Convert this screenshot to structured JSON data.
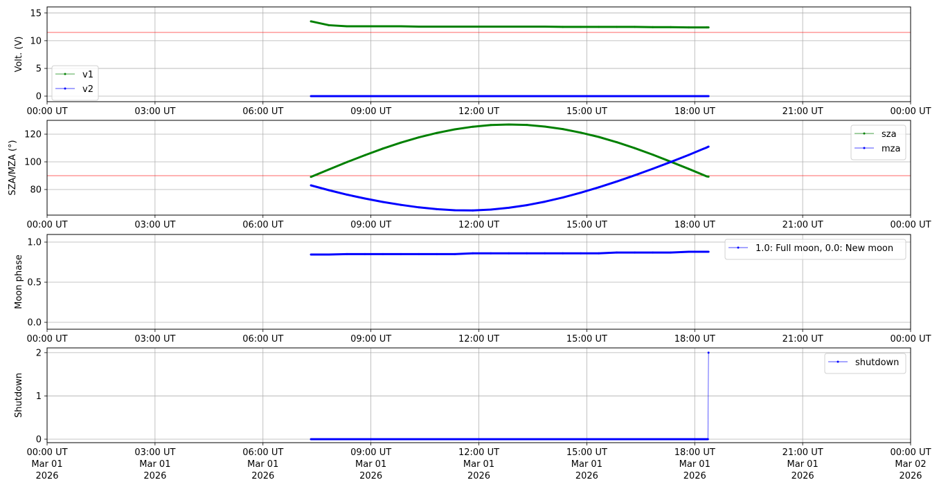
{
  "chart_data": [
    {
      "type": "line",
      "ylabel": "Volt. (V)",
      "ylim": [
        -1,
        16.1
      ],
      "yticks": [
        0,
        5,
        10,
        15
      ],
      "grid": true,
      "legend_placement": "lower-left",
      "threshold": 11.5,
      "threshold_color": "#ff0000",
      "xlim": [
        "00:00",
        "24:00"
      ],
      "x": [
        "07:20",
        "07:50",
        "08:20",
        "08:50",
        "09:20",
        "09:50",
        "10:20",
        "10:50",
        "11:20",
        "11:50",
        "12:20",
        "12:50",
        "13:20",
        "13:50",
        "14:20",
        "14:50",
        "15:20",
        "15:50",
        "16:20",
        "16:50",
        "17:20",
        "17:50",
        "18:20",
        "18:23"
      ],
      "series": [
        {
          "name": "v1",
          "color": "#008000",
          "values": [
            13.5,
            12.8,
            12.6,
            12.6,
            12.6,
            12.6,
            12.55,
            12.55,
            12.55,
            12.55,
            12.55,
            12.55,
            12.55,
            12.55,
            12.5,
            12.5,
            12.5,
            12.5,
            12.5,
            12.45,
            12.45,
            12.4,
            12.4,
            12.4
          ]
        },
        {
          "name": "v2",
          "color": "#0000ff",
          "values": [
            0,
            0,
            0,
            0,
            0,
            0,
            0,
            0,
            0,
            0,
            0,
            0,
            0,
            0,
            0,
            0,
            0,
            0,
            0,
            0,
            0,
            0,
            0,
            0
          ]
        }
      ],
      "xtick_labels": [
        "00:00 UT",
        "03:00 UT",
        "06:00 UT",
        "09:00 UT",
        "12:00 UT",
        "15:00 UT",
        "18:00 UT",
        "21:00 UT",
        "00:00 UT"
      ]
    },
    {
      "type": "line",
      "ylabel": "SZA/MZA (°)",
      "ylim": [
        61.5,
        130
      ],
      "yticks": [
        80,
        100,
        120
      ],
      "grid": true,
      "legend_placement": "upper-right",
      "threshold": 90,
      "threshold_color": "#ff0000",
      "xlim": [
        "00:00",
        "24:00"
      ],
      "x": [
        "07:20",
        "07:50",
        "08:20",
        "08:50",
        "09:20",
        "09:50",
        "10:20",
        "10:50",
        "11:20",
        "11:50",
        "12:20",
        "12:50",
        "13:20",
        "13:50",
        "14:20",
        "14:50",
        "15:20",
        "15:50",
        "16:20",
        "16:50",
        "17:20",
        "17:50",
        "18:20",
        "18:23"
      ],
      "series": [
        {
          "name": "sza",
          "color": "#008000",
          "values": [
            89.1,
            94.5,
            99.8,
            104.8,
            109.6,
            113.9,
            117.7,
            120.9,
            123.5,
            125.4,
            126.6,
            127,
            126.7,
            125.5,
            123.7,
            121.1,
            118,
            114.2,
            109.9,
            105.2,
            100.1,
            94.9,
            89.5,
            89.3
          ]
        },
        {
          "name": "mza",
          "color": "#0000ff",
          "values": [
            83,
            79.5,
            76.3,
            73.5,
            71,
            68.9,
            67.1,
            65.8,
            65,
            64.9,
            65.5,
            66.8,
            68.7,
            71.2,
            74.2,
            77.7,
            81.6,
            85.8,
            90.3,
            95,
            99.9,
            105,
            110.4,
            111
          ]
        }
      ],
      "xtick_labels": [
        "00:00 UT",
        "03:00 UT",
        "06:00 UT",
        "09:00 UT",
        "12:00 UT",
        "15:00 UT",
        "18:00 UT",
        "21:00 UT",
        "00:00 UT"
      ]
    },
    {
      "type": "line",
      "ylabel": "Moon phase",
      "ylim": [
        -0.086,
        1.095
      ],
      "yticks": [
        0.0,
        0.5,
        1.0
      ],
      "ytick_labels": [
        "0.0",
        "0.5",
        "1.0"
      ],
      "grid": true,
      "legend_placement": "upper-right",
      "xlim": [
        "00:00",
        "24:00"
      ],
      "x": [
        "07:20",
        "07:50",
        "08:20",
        "08:50",
        "09:20",
        "09:50",
        "10:20",
        "10:50",
        "11:20",
        "11:50",
        "12:20",
        "12:50",
        "13:20",
        "13:50",
        "14:20",
        "14:50",
        "15:20",
        "15:50",
        "16:20",
        "16:50",
        "17:20",
        "17:50",
        "18:20",
        "18:23"
      ],
      "series": [
        {
          "name": "1.0: Full moon, 0.0: New moon",
          "color": "#0000ff",
          "values": [
            0.845,
            0.845,
            0.85,
            0.85,
            0.85,
            0.85,
            0.85,
            0.85,
            0.85,
            0.86,
            0.86,
            0.86,
            0.86,
            0.86,
            0.86,
            0.86,
            0.86,
            0.87,
            0.87,
            0.87,
            0.87,
            0.88,
            0.88,
            0.88
          ]
        }
      ],
      "xtick_labels": [
        "00:00 UT",
        "03:00 UT",
        "06:00 UT",
        "09:00 UT",
        "12:00 UT",
        "15:00 UT",
        "18:00 UT",
        "21:00 UT",
        "00:00 UT"
      ]
    },
    {
      "type": "line",
      "ylabel": "Shutdown",
      "ylim": [
        -0.08,
        2.11
      ],
      "yticks": [
        0,
        1,
        2
      ],
      "grid": true,
      "legend_placement": "upper-right",
      "xlim": [
        "00:00",
        "24:00"
      ],
      "x": [
        "07:20",
        "07:50",
        "08:20",
        "08:50",
        "09:20",
        "09:50",
        "10:20",
        "10:50",
        "11:20",
        "11:50",
        "12:20",
        "12:50",
        "13:20",
        "13:50",
        "14:20",
        "14:50",
        "15:20",
        "15:50",
        "16:20",
        "16:50",
        "17:20",
        "17:50",
        "18:20",
        "18:22",
        "18:23"
      ],
      "series": [
        {
          "name": "shutdown",
          "color": "#0000ff",
          "values": [
            0,
            0,
            0,
            0,
            0,
            0,
            0,
            0,
            0,
            0,
            0,
            0,
            0,
            0,
            0,
            0,
            0,
            0,
            0,
            0,
            0,
            0,
            0,
            0,
            2
          ]
        }
      ],
      "xtick_labels": [
        "00:00 UT\nMar 01\n2026",
        "03:00 UT\nMar 01\n2026",
        "06:00 UT\nMar 01\n2026",
        "09:00 UT\nMar 01\n2026",
        "12:00 UT\nMar 01\n2026",
        "15:00 UT\nMar 01\n2026",
        "18:00 UT\nMar 01\n2026",
        "21:00 UT\nMar 01\n2026",
        "00:00 UT\nMar 02\n2026"
      ]
    }
  ]
}
